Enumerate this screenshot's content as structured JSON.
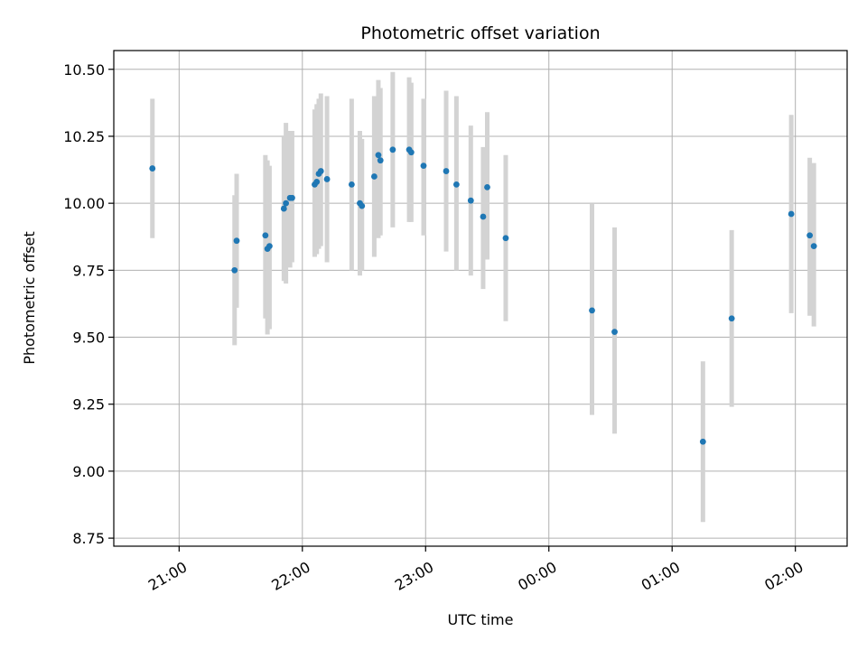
{
  "chart_data": {
    "type": "scatter",
    "title": "Photometric offset variation",
    "xlabel": "UTC time",
    "ylabel": "Photometric offset",
    "grid": true,
    "xlim_hours": [
      20.47,
      26.42
    ],
    "ylim": [
      8.72,
      10.57
    ],
    "xticks": [
      {
        "hour": 21,
        "label": "21:00"
      },
      {
        "hour": 22,
        "label": "22:00"
      },
      {
        "hour": 23,
        "label": "23:00"
      },
      {
        "hour": 24,
        "label": "00:00"
      },
      {
        "hour": 25,
        "label": "01:00"
      },
      {
        "hour": 26,
        "label": "02:00"
      }
    ],
    "yticks": [
      {
        "value": 8.75,
        "label": "8.75"
      },
      {
        "value": 9.0,
        "label": "9.00"
      },
      {
        "value": 9.25,
        "label": "9.25"
      },
      {
        "value": 9.5,
        "label": "9.50"
      },
      {
        "value": 9.75,
        "label": "9.75"
      },
      {
        "value": 10.0,
        "label": "10.00"
      },
      {
        "value": 10.25,
        "label": "10.25"
      },
      {
        "value": 10.5,
        "label": "10.50"
      }
    ],
    "colors": {
      "point": "#1f77b4",
      "errorbar": "#d3d3d3",
      "grid": "#b0b0b0"
    },
    "points": [
      {
        "t": "20:47",
        "y": 10.13,
        "lo": 9.87,
        "hi": 10.39
      },
      {
        "t": "21:27",
        "y": 9.75,
        "lo": 9.47,
        "hi": 10.03
      },
      {
        "t": "21:28",
        "y": 9.86,
        "lo": 9.61,
        "hi": 10.11
      },
      {
        "t": "21:42",
        "y": 9.88,
        "lo": 9.57,
        "hi": 10.18
      },
      {
        "t": "21:43",
        "y": 9.83,
        "lo": 9.51,
        "hi": 10.16
      },
      {
        "t": "21:44",
        "y": 9.84,
        "lo": 9.53,
        "hi": 10.14
      },
      {
        "t": "21:51",
        "y": 9.98,
        "lo": 9.71,
        "hi": 10.25
      },
      {
        "t": "21:52",
        "y": 10.0,
        "lo": 9.7,
        "hi": 10.3
      },
      {
        "t": "21:54",
        "y": 10.02,
        "lo": 9.76,
        "hi": 10.27
      },
      {
        "t": "21:55",
        "y": 10.02,
        "lo": 9.78,
        "hi": 10.27
      },
      {
        "t": "22:06",
        "y": 10.07,
        "lo": 9.8,
        "hi": 10.35
      },
      {
        "t": "22:07",
        "y": 10.08,
        "lo": 9.81,
        "hi": 10.37
      },
      {
        "t": "22:08",
        "y": 10.11,
        "lo": 9.83,
        "hi": 10.39
      },
      {
        "t": "22:09",
        "y": 10.12,
        "lo": 9.84,
        "hi": 10.41
      },
      {
        "t": "22:12",
        "y": 10.09,
        "lo": 9.78,
        "hi": 10.4
      },
      {
        "t": "22:24",
        "y": 10.07,
        "lo": 9.75,
        "hi": 10.39
      },
      {
        "t": "22:28",
        "y": 10.0,
        "lo": 9.73,
        "hi": 10.27
      },
      {
        "t": "22:29",
        "y": 9.99,
        "lo": 9.75,
        "hi": 10.24
      },
      {
        "t": "22:35",
        "y": 10.1,
        "lo": 9.8,
        "hi": 10.4
      },
      {
        "t": "22:37",
        "y": 10.18,
        "lo": 9.87,
        "hi": 10.46
      },
      {
        "t": "22:38",
        "y": 10.16,
        "lo": 9.88,
        "hi": 10.43
      },
      {
        "t": "22:44",
        "y": 10.2,
        "lo": 9.91,
        "hi": 10.49
      },
      {
        "t": "22:52",
        "y": 10.2,
        "lo": 9.93,
        "hi": 10.47
      },
      {
        "t": "22:53",
        "y": 10.19,
        "lo": 9.93,
        "hi": 10.45
      },
      {
        "t": "22:59",
        "y": 10.14,
        "lo": 9.88,
        "hi": 10.39
      },
      {
        "t": "23:10",
        "y": 10.12,
        "lo": 9.82,
        "hi": 10.42
      },
      {
        "t": "23:15",
        "y": 10.07,
        "lo": 9.75,
        "hi": 10.4
      },
      {
        "t": "23:22",
        "y": 10.01,
        "lo": 9.73,
        "hi": 10.29
      },
      {
        "t": "23:28",
        "y": 9.95,
        "lo": 9.68,
        "hi": 10.21
      },
      {
        "t": "23:30",
        "y": 10.06,
        "lo": 9.79,
        "hi": 10.34
      },
      {
        "t": "23:39",
        "y": 9.87,
        "lo": 9.56,
        "hi": 10.18
      },
      {
        "t": "00:21",
        "y": 9.6,
        "lo": 9.21,
        "hi": 10.0
      },
      {
        "t": "00:32",
        "y": 9.52,
        "lo": 9.14,
        "hi": 9.91
      },
      {
        "t": "01:15",
        "y": 9.11,
        "lo": 8.81,
        "hi": 9.41
      },
      {
        "t": "01:29",
        "y": 9.57,
        "lo": 9.24,
        "hi": 9.9
      },
      {
        "t": "01:58",
        "y": 9.96,
        "lo": 9.59,
        "hi": 10.33
      },
      {
        "t": "02:07",
        "y": 9.88,
        "lo": 9.58,
        "hi": 10.17
      },
      {
        "t": "02:09",
        "y": 9.84,
        "lo": 9.54,
        "hi": 10.15
      }
    ]
  }
}
